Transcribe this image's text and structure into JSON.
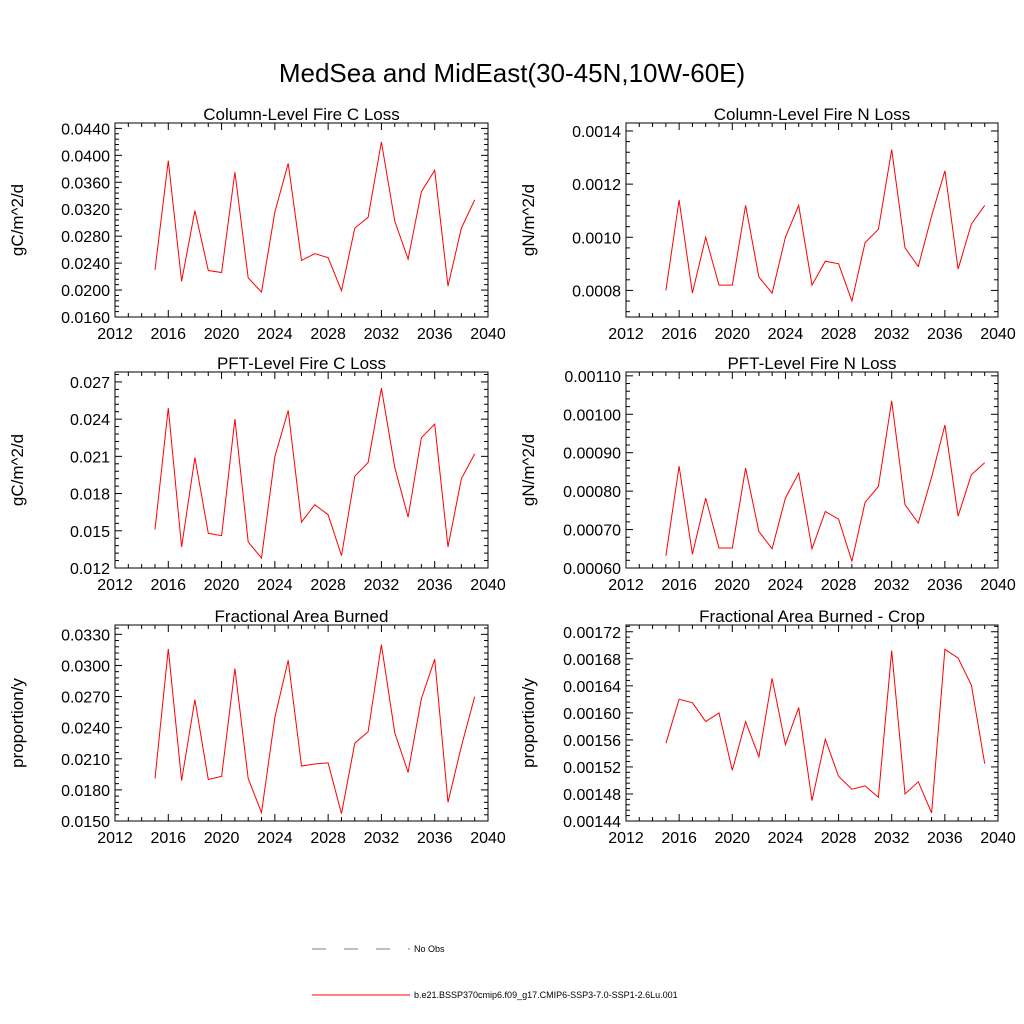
{
  "figure": {
    "title": "MedSea and MidEast(30-45N,10W-60E)"
  },
  "legend": {
    "entries": [
      {
        "label": "No Obs",
        "color": "#7a7aa8",
        "style": "dashed"
      },
      {
        "label": "b.e21.BSSP370cmip6.f09_g17.CMIP6-SSP3-7.0-SSP1-2.6Lu.001",
        "color": "#ff0000",
        "style": "solid"
      }
    ]
  },
  "chart_data": [
    {
      "type": "line",
      "title": "Column-Level Fire C Loss",
      "ylabel": "gC/m^2/d",
      "xlim": [
        2012,
        2040
      ],
      "ylim": [
        0.016,
        0.0448
      ],
      "xticks": [
        "2012",
        "2016",
        "2020",
        "2024",
        "2028",
        "2032",
        "2036",
        "2040"
      ],
      "yticks": [
        "0.0160",
        "0.0200",
        "0.0240",
        "0.0280",
        "0.0320",
        "0.0360",
        "0.0400",
        "0.0440"
      ],
      "x": [
        2015,
        2016,
        2017,
        2018,
        2019,
        2020,
        2021,
        2022,
        2023,
        2024,
        2025,
        2026,
        2027,
        2028,
        2029,
        2030,
        2031,
        2032,
        2033,
        2034,
        2035,
        2036,
        2037,
        2038,
        2039
      ],
      "series": [
        {
          "color": "#ff0000",
          "values": [
            0.023,
            0.0392,
            0.0213,
            0.0318,
            0.0229,
            0.0226,
            0.0375,
            0.0218,
            0.0197,
            0.0316,
            0.0388,
            0.0244,
            0.0254,
            0.0248,
            0.0199,
            0.0292,
            0.0308,
            0.042,
            0.0302,
            0.0246,
            0.0346,
            0.0378,
            0.0206,
            0.0292,
            0.0334
          ]
        }
      ]
    },
    {
      "type": "line",
      "title": "Column-Level Fire N Loss",
      "ylabel": "gN/m^2/d",
      "xlim": [
        2012,
        2040
      ],
      "ylim": [
        0.0007,
        0.00143
      ],
      "xticks": [
        "2012",
        "2016",
        "2020",
        "2024",
        "2028",
        "2032",
        "2036",
        "2040"
      ],
      "yticks": [
        "0.0008",
        "0.0010",
        "0.0012",
        "0.0014"
      ],
      "x": [
        2015,
        2016,
        2017,
        2018,
        2019,
        2020,
        2021,
        2022,
        2023,
        2024,
        2025,
        2026,
        2027,
        2028,
        2029,
        2030,
        2031,
        2032,
        2033,
        2034,
        2035,
        2036,
        2037,
        2038,
        2039
      ],
      "series": [
        {
          "color": "#ff0000",
          "values": [
            0.0008,
            0.00114,
            0.00079,
            0.001,
            0.00082,
            0.00082,
            0.00112,
            0.00085,
            0.00079,
            0.001,
            0.00112,
            0.00082,
            0.00091,
            0.0009,
            0.00076,
            0.00098,
            0.00103,
            0.00133,
            0.00096,
            0.00089,
            0.00108,
            0.00125,
            0.00088,
            0.00105,
            0.00112
          ]
        }
      ]
    },
    {
      "type": "line",
      "title": "PFT-Level Fire C Loss",
      "ylabel": "gC/m^2/d",
      "xlim": [
        2012,
        2040
      ],
      "ylim": [
        0.012,
        0.0278
      ],
      "xticks": [
        "2012",
        "2016",
        "2020",
        "2024",
        "2028",
        "2032",
        "2036",
        "2040"
      ],
      "yticks": [
        "0.012",
        "0.015",
        "0.018",
        "0.021",
        "0.024",
        "0.027"
      ],
      "x": [
        2015,
        2016,
        2017,
        2018,
        2019,
        2020,
        2021,
        2022,
        2023,
        2024,
        2025,
        2026,
        2027,
        2028,
        2029,
        2030,
        2031,
        2032,
        2033,
        2034,
        2035,
        2036,
        2037,
        2038,
        2039
      ],
      "series": [
        {
          "color": "#ff0000",
          "values": [
            0.0151,
            0.0249,
            0.0137,
            0.0209,
            0.0148,
            0.0146,
            0.024,
            0.0141,
            0.0128,
            0.021,
            0.0247,
            0.0157,
            0.0171,
            0.0163,
            0.013,
            0.0194,
            0.0205,
            0.0265,
            0.0201,
            0.0161,
            0.0225,
            0.0236,
            0.0137,
            0.0192,
            0.0212
          ]
        }
      ]
    },
    {
      "type": "line",
      "title": "PFT-Level Fire N Loss",
      "ylabel": "gN/m^2/d",
      "xlim": [
        2012,
        2040
      ],
      "ylim": [
        0.0006,
        0.00111
      ],
      "xticks": [
        "2012",
        "2016",
        "2020",
        "2024",
        "2028",
        "2032",
        "2036",
        "2040"
      ],
      "yticks": [
        "0.00060",
        "0.00070",
        "0.00080",
        "0.00090",
        "0.00100",
        "0.00110"
      ],
      "x": [
        2015,
        2016,
        2017,
        2018,
        2019,
        2020,
        2021,
        2022,
        2023,
        2024,
        2025,
        2026,
        2027,
        2028,
        2029,
        2030,
        2031,
        2032,
        2033,
        2034,
        2035,
        2036,
        2037,
        2038,
        2039
      ],
      "series": [
        {
          "color": "#ff0000",
          "values": [
            0.000632,
            0.000865,
            0.000636,
            0.000782,
            0.000652,
            0.000652,
            0.00086,
            0.000695,
            0.00065,
            0.000782,
            0.000847,
            0.00065,
            0.000747,
            0.000727,
            0.000618,
            0.000771,
            0.000812,
            0.001035,
            0.000765,
            0.000717,
            0.000836,
            0.000972,
            0.000735,
            0.000843,
            0.000874
          ]
        }
      ]
    },
    {
      "type": "line",
      "title": "Fractional Area Burned",
      "ylabel": "proportion/y",
      "xlim": [
        2012,
        2040
      ],
      "ylim": [
        0.015,
        0.0339
      ],
      "xticks": [
        "2012",
        "2016",
        "2020",
        "2024",
        "2028",
        "2032",
        "2036",
        "2040"
      ],
      "yticks": [
        "0.0150",
        "0.0180",
        "0.0210",
        "0.0240",
        "0.0270",
        "0.0300",
        "0.0330"
      ],
      "x": [
        2015,
        2016,
        2017,
        2018,
        2019,
        2020,
        2021,
        2022,
        2023,
        2024,
        2025,
        2026,
        2027,
        2028,
        2029,
        2030,
        2031,
        2032,
        2033,
        2034,
        2035,
        2036,
        2037,
        2038,
        2039
      ],
      "series": [
        {
          "color": "#ff0000",
          "values": [
            0.0191,
            0.0316,
            0.0189,
            0.0267,
            0.019,
            0.0193,
            0.0297,
            0.0191,
            0.0158,
            0.025,
            0.0305,
            0.0203,
            0.0205,
            0.0206,
            0.0157,
            0.0225,
            0.0236,
            0.032,
            0.0235,
            0.0197,
            0.0268,
            0.0306,
            0.0168,
            0.0222,
            0.027
          ]
        }
      ]
    },
    {
      "type": "line",
      "title": "Fractional Area Burned - Crop",
      "ylabel": "proportion/y",
      "xlim": [
        2012,
        2040
      ],
      "ylim": [
        0.00144,
        0.00173
      ],
      "xticks": [
        "2012",
        "2016",
        "2020",
        "2024",
        "2028",
        "2032",
        "2036",
        "2040"
      ],
      "yticks": [
        "0.00144",
        "0.00148",
        "0.00152",
        "0.00156",
        "0.00160",
        "0.00164",
        "0.00168",
        "0.00172"
      ],
      "x": [
        2015,
        2016,
        2017,
        2018,
        2019,
        2020,
        2021,
        2022,
        2023,
        2024,
        2025,
        2026,
        2027,
        2028,
        2029,
        2030,
        2031,
        2032,
        2033,
        2034,
        2035,
        2036,
        2037,
        2038,
        2039
      ],
      "series": [
        {
          "color": "#ff0000",
          "values": [
            0.001555,
            0.00162,
            0.001615,
            0.001587,
            0.0016,
            0.001515,
            0.001587,
            0.001535,
            0.001651,
            0.001553,
            0.001608,
            0.00147,
            0.001561,
            0.001506,
            0.001487,
            0.001492,
            0.001475,
            0.001692,
            0.00148,
            0.001498,
            0.001452,
            0.001694,
            0.001681,
            0.001641,
            0.001525
          ]
        }
      ]
    }
  ]
}
